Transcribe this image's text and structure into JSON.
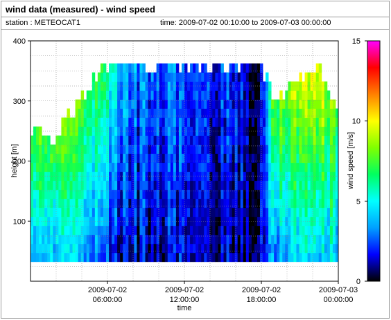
{
  "header": {
    "title": "wind data (measured) - wind speed",
    "station": "station : METEOCAT1",
    "time_range": "time: 2009-07-02 00:10:00 to 2009-07-03 00:00:00"
  },
  "chart_data": {
    "type": "heatmap",
    "xlabel": "time",
    "ylabel": "height [m]",
    "x_range_hours": [
      0,
      24
    ],
    "ylim": [
      0,
      400
    ],
    "y_ticks": [
      100,
      200,
      300,
      400
    ],
    "x_ticks": [
      {
        "hour": 6,
        "line1": "2009-07-02",
        "line2": "06:00:00"
      },
      {
        "hour": 12,
        "line1": "2009-07-02",
        "line2": "12:00:00"
      },
      {
        "hour": 18,
        "line1": "2009-07-02",
        "line2": "18:00:00"
      },
      {
        "hour": 24,
        "line1": "2009-07-03",
        "line2": "00:00:00"
      }
    ],
    "colorbar": {
      "label": "wind speed [m/s]",
      "range": [
        0,
        15
      ],
      "ticks": [
        0,
        5,
        10,
        15
      ],
      "colors": [
        "#000000",
        "#0000ff",
        "#00a0ff",
        "#00ffff",
        "#00ff60",
        "#80ff00",
        "#ffff00",
        "#ff8000",
        "#ff0000",
        "#ff00ff"
      ]
    },
    "height_levels_m": [
      40,
      55,
      70,
      85,
      100,
      115,
      130,
      145,
      160,
      175,
      190,
      205,
      220,
      235,
      250,
      265,
      280,
      295,
      310,
      325,
      340,
      355
    ],
    "speed_profile_by_time": [
      {
        "hour": 0,
        "speed_top": 9.5,
        "speed_low": 4.0,
        "max_height": 250
      },
      {
        "hour": 2,
        "speed_top": 10.5,
        "speed_low": 4.5,
        "max_height": 235
      },
      {
        "hour": 4,
        "speed_top": 9.0,
        "speed_low": 4.0,
        "max_height": 310
      },
      {
        "hour": 5,
        "speed_top": 7.5,
        "speed_low": 3.0,
        "max_height": 340
      },
      {
        "hour": 6,
        "speed_top": 6.0,
        "speed_low": 2.0,
        "max_height": 360
      },
      {
        "hour": 7,
        "speed_top": 4.5,
        "speed_low": 1.5,
        "max_height": 365
      },
      {
        "hour": 8,
        "speed_top": 3.0,
        "speed_low": 1.2,
        "max_height": 365
      },
      {
        "hour": 12,
        "speed_top": 2.5,
        "speed_low": 1.5,
        "max_height": 365
      },
      {
        "hour": 16,
        "speed_top": 2.0,
        "speed_low": 1.0,
        "max_height": 365
      },
      {
        "hour": 17,
        "speed_top": 1.0,
        "speed_low": 0.5,
        "max_height": 365
      },
      {
        "hour": 18,
        "speed_top": 1.0,
        "speed_low": 1.5,
        "max_height": 365
      },
      {
        "hour": 19,
        "speed_top": 8.5,
        "speed_low": 3.0,
        "max_height": 310
      },
      {
        "hour": 21,
        "speed_top": 9.5,
        "speed_low": 4.5,
        "max_height": 330
      },
      {
        "hour": 22.5,
        "speed_top": 10.0,
        "speed_low": 4.5,
        "max_height": 360
      },
      {
        "hour": 24,
        "speed_top": 9.0,
        "speed_low": 4.0,
        "max_height": 280
      }
    ]
  }
}
